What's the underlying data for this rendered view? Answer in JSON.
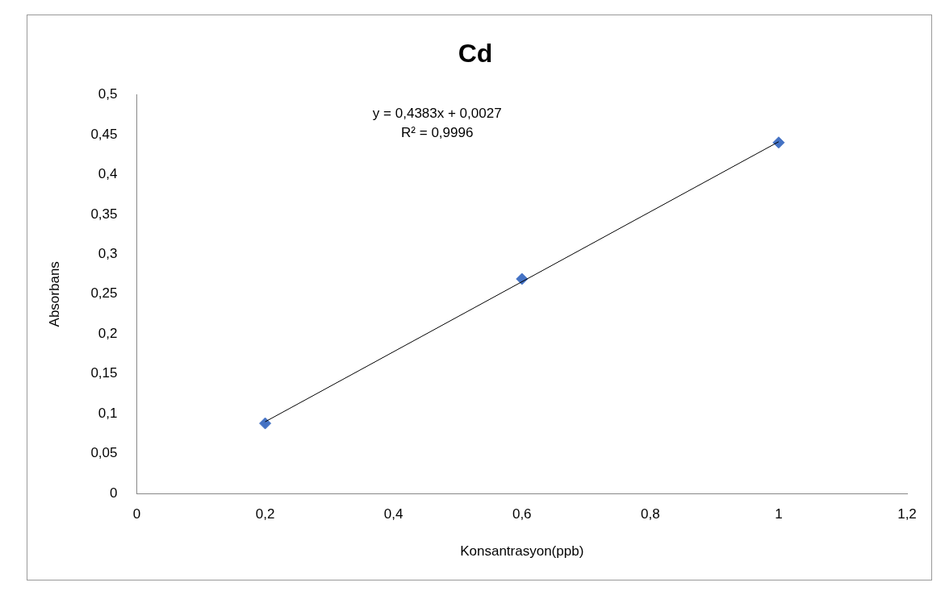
{
  "chart_data": {
    "type": "scatter",
    "title": "Cd",
    "xlabel": "Konsantrasyon(ppb)",
    "ylabel": "Absorbans",
    "x": [
      0.2,
      0.6,
      1
    ],
    "series": [
      {
        "type": "scatter",
        "color": "#4472c4",
        "values": [
          0.088,
          0.269,
          0.44
        ]
      },
      {
        "type": "line",
        "color": "#000000",
        "marker": "none",
        "x": [
          0.2,
          1
        ],
        "values": [
          0.09,
          0.441
        ]
      }
    ],
    "marker": "diamond",
    "grid": false,
    "legend": false,
    "xlim": [
      0,
      1.2
    ],
    "xticks": [
      0,
      {
        "value": 0.2,
        "label": "0,2"
      },
      {
        "value": 0.4,
        "label": "0,4"
      },
      {
        "value": 0.6,
        "label": "0,6"
      },
      {
        "value": 0.8,
        "label": "0,8"
      },
      1,
      {
        "value": 1.2,
        "label": "1,2"
      }
    ],
    "ylim": [
      0,
      0.5
    ],
    "yticks": [
      0,
      {
        "value": 0.05,
        "label": "0,05"
      },
      {
        "value": 0.1,
        "label": "0,1"
      },
      {
        "value": 0.15,
        "label": "0,15"
      },
      {
        "value": 0.2,
        "label": "0,2"
      },
      {
        "value": 0.25,
        "label": "0,25"
      },
      {
        "value": 0.3,
        "label": "0,3"
      },
      {
        "value": 0.35,
        "label": "0,35"
      },
      {
        "value": 0.4,
        "label": "0,4"
      },
      {
        "value": 0.45,
        "label": "0,45"
      },
      {
        "value": 0.5,
        "label": "0,5"
      }
    ],
    "annotations": [
      "y = 0,4383x + 0,0027",
      "R² = 0,9996"
    ]
  }
}
